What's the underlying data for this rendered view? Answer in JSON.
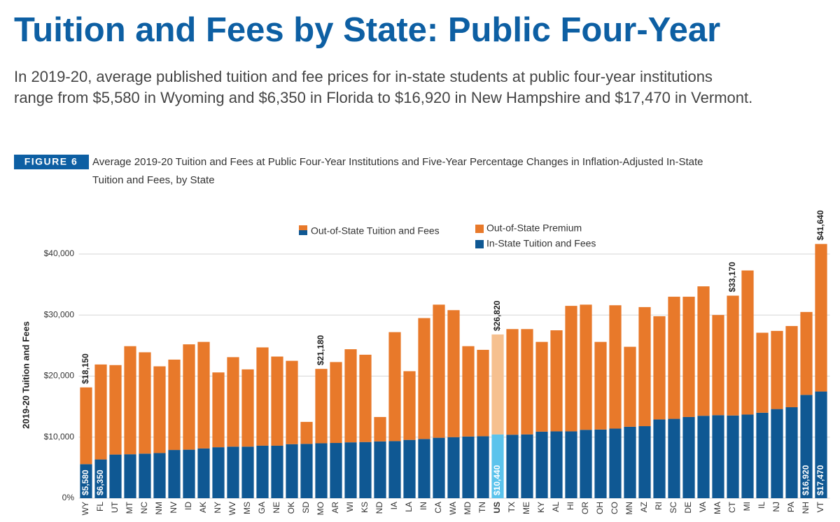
{
  "header": {
    "title": "Tuition and Fees by State: Public Four-Year",
    "subtitle_lines": [
      "In 2019-20, average published tuition and fee prices for in-state students at public four-year institutions",
      "range from $5,580 in Wyoming and $6,350 in Florida to $16,920 in New Hampshire and $17,470 in Vermont."
    ]
  },
  "chart_data": {
    "type": "stacked_bar",
    "figure_label": "FIGURE 6",
    "caption_lines": [
      "Average 2019-20 Tuition and Fees at Public Four-Year Institutions and Five-Year Percentage Changes in Inflation-Adjusted In-State",
      "Tuition and Fees, by State"
    ],
    "y_label": "2019-20 Tuition and Fees",
    "categories": [
      "WY",
      "FL",
      "UT",
      "MT",
      "NC",
      "NM",
      "NV",
      "ID",
      "AK",
      "NY",
      "WV",
      "MS",
      "GA",
      "NE",
      "OK",
      "SD",
      "MO",
      "AR",
      "WI",
      "KS",
      "ND",
      "IA",
      "LA",
      "IN",
      "CA",
      "WA",
      "MD",
      "TN",
      "US",
      "TX",
      "ME",
      "KY",
      "AL",
      "HI",
      "OR",
      "OH",
      "CO",
      "MN",
      "AZ",
      "RI",
      "SC",
      "DE",
      "VA",
      "MA",
      "CT",
      "MI",
      "IL",
      "NJ",
      "PA",
      "NH",
      "VT"
    ],
    "series": [
      {
        "name": "In-State Tuition and Fees",
        "color": "#0f5893",
        "highlight_color": "#5bc3ec",
        "values": [
          5580,
          6350,
          7150,
          7200,
          7300,
          7400,
          7900,
          7950,
          8150,
          8350,
          8450,
          8450,
          8600,
          8600,
          8850,
          8900,
          9000,
          9050,
          9150,
          9200,
          9300,
          9350,
          9550,
          9700,
          9900,
          10000,
          10100,
          10150,
          10440,
          10400,
          10450,
          10900,
          10950,
          10950,
          11200,
          11250,
          11400,
          11700,
          11800,
          12900,
          13000,
          13300,
          13500,
          13600,
          13550,
          13700,
          14000,
          14600,
          14900,
          16920,
          17470
        ],
        "value_labels": [
          "$5,580",
          "$6,350",
          null,
          null,
          null,
          null,
          null,
          null,
          null,
          null,
          null,
          null,
          null,
          null,
          null,
          null,
          null,
          null,
          null,
          null,
          null,
          null,
          null,
          null,
          null,
          null,
          null,
          null,
          "$10,440",
          null,
          null,
          null,
          null,
          null,
          null,
          null,
          null,
          null,
          null,
          null,
          null,
          null,
          null,
          null,
          null,
          null,
          null,
          null,
          null,
          "$16,920",
          "$17,470"
        ]
      },
      {
        "name": "Out-of-State Premium",
        "color": "#e8792a",
        "highlight_color": "#f6c08f",
        "values": [
          12570,
          15550,
          14650,
          17700,
          16600,
          14200,
          14800,
          17250,
          17450,
          12250,
          14650,
          12650,
          16100,
          14600,
          13650,
          3600,
          12180,
          13250,
          15250,
          14300,
          4000,
          17850,
          11250,
          19800,
          21800,
          20800,
          14800,
          14150,
          16380,
          17300,
          17250,
          14700,
          16550,
          20550,
          20500,
          14350,
          20200,
          13100,
          19500,
          16900,
          20000,
          19700,
          21200,
          16400,
          19620,
          23600,
          13100,
          12800,
          13300,
          13580,
          24170
        ]
      }
    ],
    "highlight_category": "US",
    "highlight_legend": "Out-of-State Tuition and Fees",
    "annotations": [
      {
        "category": "WY",
        "text": "$18,150"
      },
      {
        "category": "MO",
        "text": "$21,180"
      },
      {
        "category": "US",
        "text": "$26,820"
      },
      {
        "category": "CT",
        "text": "$33,170"
      },
      {
        "category": "VT",
        "text": "$41,640"
      }
    ],
    "ylim": [
      0,
      42000
    ],
    "yticks": [
      {
        "value": 0,
        "label": "0%"
      },
      {
        "value": 10000,
        "label": "$10,000"
      },
      {
        "value": 20000,
        "label": "$20,000"
      },
      {
        "value": 30000,
        "label": "$30,000"
      },
      {
        "value": 40000,
        "label": "$40,000"
      }
    ],
    "grid": true
  }
}
